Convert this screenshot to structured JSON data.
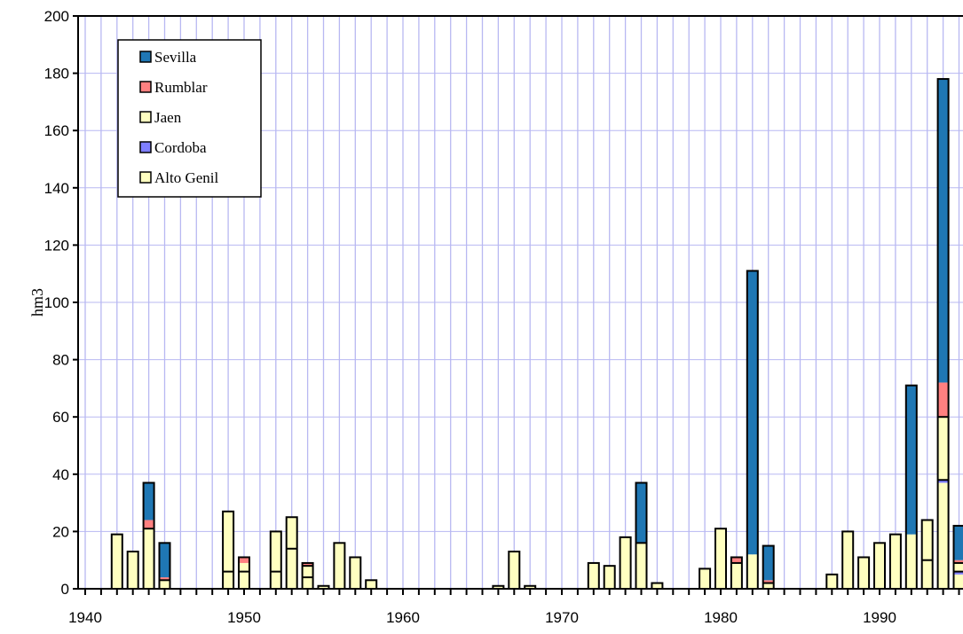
{
  "chart_data": {
    "type": "bar",
    "stacked": true,
    "title": "",
    "xlabel": "",
    "ylabel": "hm3",
    "xlim": [
      1940,
      1995
    ],
    "ylim": [
      0,
      200
    ],
    "xticks": [
      1940,
      1950,
      1960,
      1970,
      1980,
      1990
    ],
    "yticks": [
      0,
      20,
      40,
      60,
      80,
      100,
      120,
      140,
      160,
      180,
      200
    ],
    "grid": true,
    "legend_position": "top-left",
    "x": [
      1942,
      1943,
      1944,
      1945,
      1949,
      1950,
      1952,
      1953,
      1954,
      1955,
      1956,
      1957,
      1958,
      1966,
      1967,
      1968,
      1972,
      1973,
      1974,
      1975,
      1976,
      1979,
      1980,
      1981,
      1982,
      1983,
      1987,
      1988,
      1989,
      1990,
      1991,
      1992,
      1993,
      1994,
      1995
    ],
    "series": [
      {
        "name": "Alto Genil",
        "color": "#ffffc0",
        "values": [
          0,
          0,
          0,
          0,
          0,
          0,
          0,
          0,
          0,
          0,
          0,
          0,
          0,
          0,
          0,
          0,
          0,
          0,
          0,
          0,
          0,
          0,
          0,
          0,
          0,
          0,
          0,
          0,
          0,
          0,
          0,
          0,
          0,
          37,
          5
        ]
      },
      {
        "name": "Cordoba",
        "color": "#7f7fff",
        "values": [
          0,
          0,
          0,
          0,
          0,
          0,
          0,
          0,
          0,
          0,
          0,
          0,
          0,
          0,
          0,
          0,
          0,
          0,
          0,
          0,
          0,
          0,
          0,
          0,
          0,
          0,
          0,
          0,
          0,
          0,
          0,
          0,
          0,
          1,
          1
        ]
      },
      {
        "name": "Jaen",
        "color": "#ffffc0",
        "values": [
          19,
          13,
          21,
          3,
          27,
          9,
          20,
          25,
          8,
          1,
          16,
          11,
          3,
          1,
          13,
          1,
          9,
          8,
          18,
          16,
          2,
          7,
          21,
          9,
          12,
          2,
          5,
          20,
          11,
          16,
          19,
          19,
          24,
          22,
          3
        ]
      },
      {
        "name": "Rumblar",
        "color": "#ff8080",
        "values": [
          0,
          0,
          3,
          1,
          0,
          2,
          0,
          0,
          1,
          0,
          0,
          0,
          0,
          0,
          0,
          0,
          0,
          0,
          0,
          0,
          0,
          0,
          0,
          2,
          0,
          1,
          0,
          0,
          0,
          0,
          0,
          0,
          0,
          12,
          1
        ]
      },
      {
        "name": "Sevilla",
        "color": "#1f77b4",
        "values": [
          0,
          0,
          13,
          12,
          0,
          0,
          0,
          0,
          0,
          0,
          0,
          0,
          0,
          0,
          0,
          0,
          0,
          0,
          0,
          21,
          0,
          0,
          0,
          0,
          99,
          12,
          0,
          0,
          0,
          0,
          0,
          52,
          0,
          106,
          12
        ]
      }
    ],
    "segment_dividers": {
      "1944": [
        21
      ],
      "1945": [
        3
      ],
      "1949": [
        6
      ],
      "1950": [
        6
      ],
      "1952": [
        6
      ],
      "1953": [
        14
      ],
      "1954": [
        4,
        8
      ],
      "1975": [
        16
      ],
      "1981": [
        9
      ],
      "1983": [
        2
      ],
      "1993": [
        10
      ],
      "1994": [
        38,
        60
      ],
      "1995": [
        6,
        9
      ]
    }
  }
}
